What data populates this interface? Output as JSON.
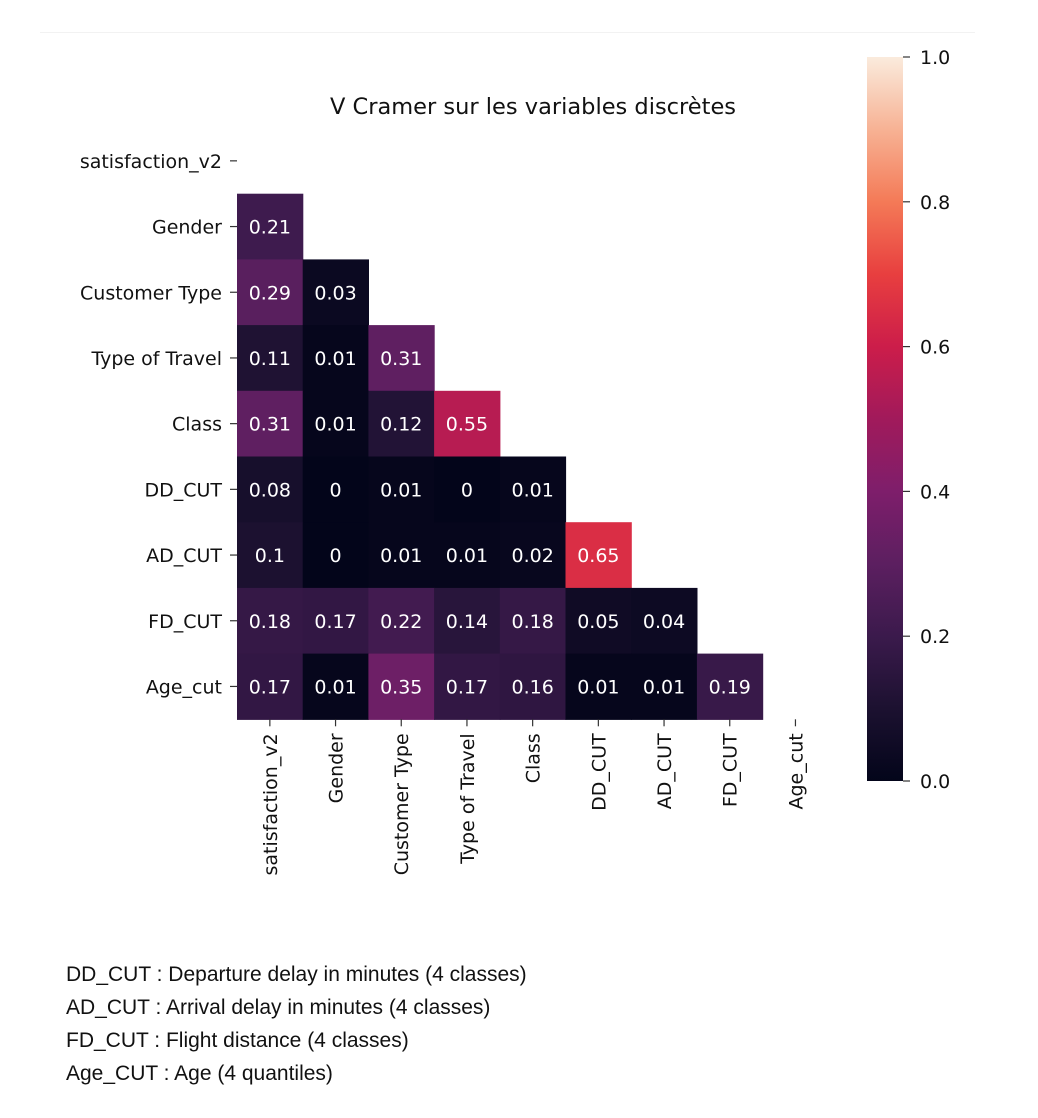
{
  "chart_data": {
    "type": "heatmap",
    "title": "V Cramer sur les variables discrètes",
    "row_labels": [
      "satisfaction_v2",
      "Gender",
      "Customer Type",
      "Type of Travel",
      "Class",
      "DD_CUT",
      "AD_CUT",
      "FD_CUT",
      "Age_cut"
    ],
    "col_labels": [
      "satisfaction_v2",
      "Gender",
      "Customer Type",
      "Type of Travel",
      "Class",
      "DD_CUT",
      "AD_CUT",
      "FD_CUT",
      "Age_cut"
    ],
    "cells": [
      {
        "row": 1,
        "col": 0,
        "value": 0.21,
        "label": "0.21"
      },
      {
        "row": 2,
        "col": 0,
        "value": 0.29,
        "label": "0.29"
      },
      {
        "row": 2,
        "col": 1,
        "value": 0.03,
        "label": "0.03"
      },
      {
        "row": 3,
        "col": 0,
        "value": 0.11,
        "label": "0.11"
      },
      {
        "row": 3,
        "col": 1,
        "value": 0.01,
        "label": "0.01"
      },
      {
        "row": 3,
        "col": 2,
        "value": 0.31,
        "label": "0.31"
      },
      {
        "row": 4,
        "col": 0,
        "value": 0.31,
        "label": "0.31"
      },
      {
        "row": 4,
        "col": 1,
        "value": 0.01,
        "label": "0.01"
      },
      {
        "row": 4,
        "col": 2,
        "value": 0.12,
        "label": "0.12"
      },
      {
        "row": 4,
        "col": 3,
        "value": 0.55,
        "label": "0.55"
      },
      {
        "row": 5,
        "col": 0,
        "value": 0.08,
        "label": "0.08"
      },
      {
        "row": 5,
        "col": 1,
        "value": 0,
        "label": "0"
      },
      {
        "row": 5,
        "col": 2,
        "value": 0.01,
        "label": "0.01"
      },
      {
        "row": 5,
        "col": 3,
        "value": 0,
        "label": "0"
      },
      {
        "row": 5,
        "col": 4,
        "value": 0.01,
        "label": "0.01"
      },
      {
        "row": 6,
        "col": 0,
        "value": 0.1,
        "label": "0.1"
      },
      {
        "row": 6,
        "col": 1,
        "value": 0,
        "label": "0"
      },
      {
        "row": 6,
        "col": 2,
        "value": 0.01,
        "label": "0.01"
      },
      {
        "row": 6,
        "col": 3,
        "value": 0.01,
        "label": "0.01"
      },
      {
        "row": 6,
        "col": 4,
        "value": 0.02,
        "label": "0.02"
      },
      {
        "row": 6,
        "col": 5,
        "value": 0.65,
        "label": "0.65"
      },
      {
        "row": 7,
        "col": 0,
        "value": 0.18,
        "label": "0.18"
      },
      {
        "row": 7,
        "col": 1,
        "value": 0.17,
        "label": "0.17"
      },
      {
        "row": 7,
        "col": 2,
        "value": 0.22,
        "label": "0.22"
      },
      {
        "row": 7,
        "col": 3,
        "value": 0.14,
        "label": "0.14"
      },
      {
        "row": 7,
        "col": 4,
        "value": 0.18,
        "label": "0.18"
      },
      {
        "row": 7,
        "col": 5,
        "value": 0.05,
        "label": "0.05"
      },
      {
        "row": 7,
        "col": 6,
        "value": 0.04,
        "label": "0.04"
      },
      {
        "row": 8,
        "col": 0,
        "value": 0.17,
        "label": "0.17"
      },
      {
        "row": 8,
        "col": 1,
        "value": 0.01,
        "label": "0.01"
      },
      {
        "row": 8,
        "col": 2,
        "value": 0.35,
        "label": "0.35"
      },
      {
        "row": 8,
        "col": 3,
        "value": 0.17,
        "label": "0.17"
      },
      {
        "row": 8,
        "col": 4,
        "value": 0.16,
        "label": "0.16"
      },
      {
        "row": 8,
        "col": 5,
        "value": 0.01,
        "label": "0.01"
      },
      {
        "row": 8,
        "col": 6,
        "value": 0.01,
        "label": "0.01"
      },
      {
        "row": 8,
        "col": 7,
        "value": 0.19,
        "label": "0.19"
      }
    ],
    "colorbar": {
      "range": [
        0,
        1
      ],
      "ticks": [
        {
          "value": 0,
          "label": "0.0"
        },
        {
          "value": 0.2,
          "label": "0.2"
        },
        {
          "value": 0.4,
          "label": "0.4"
        },
        {
          "value": 0.6,
          "label": "0.6"
        },
        {
          "value": 0.8,
          "label": "0.8"
        },
        {
          "value": 1,
          "label": "1.0"
        }
      ],
      "colormap": "rocket"
    }
  },
  "notes": {
    "dd": "DD_CUT : Departure delay in minutes (4 classes)",
    "ad": "AD_CUT : Arrival delay in minutes (4 classes)",
    "fd": "FD_CUT : Flight distance (4 classes)",
    "age": "Age_CUT : Age (4 quantiles)"
  }
}
